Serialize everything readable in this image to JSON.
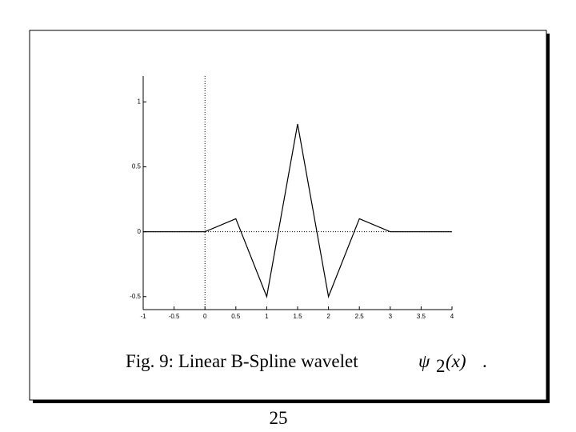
{
  "chart_data": {
    "type": "line",
    "x": [
      -1,
      0,
      0.5,
      1,
      1.5,
      2,
      2.5,
      3,
      4
    ],
    "values": [
      0,
      0,
      0.1,
      -0.5,
      0.83,
      -0.5,
      0.1,
      0,
      0
    ],
    "color": "#000000",
    "xlim": [
      -1,
      4
    ],
    "xticks": [
      -1,
      -0.5,
      0,
      0.5,
      1,
      1.5,
      2,
      2.5,
      3,
      3.5,
      4
    ],
    "ylim": [
      -0.6,
      1.2
    ],
    "yticks": [
      -0.5,
      0,
      0.5,
      1
    ]
  },
  "caption": {
    "text": "Fig. 9: Linear B-Spline wavelet",
    "symbol": "ψ",
    "subscript": "2",
    "argument": "(x)",
    "end": "."
  },
  "page_number": 25
}
